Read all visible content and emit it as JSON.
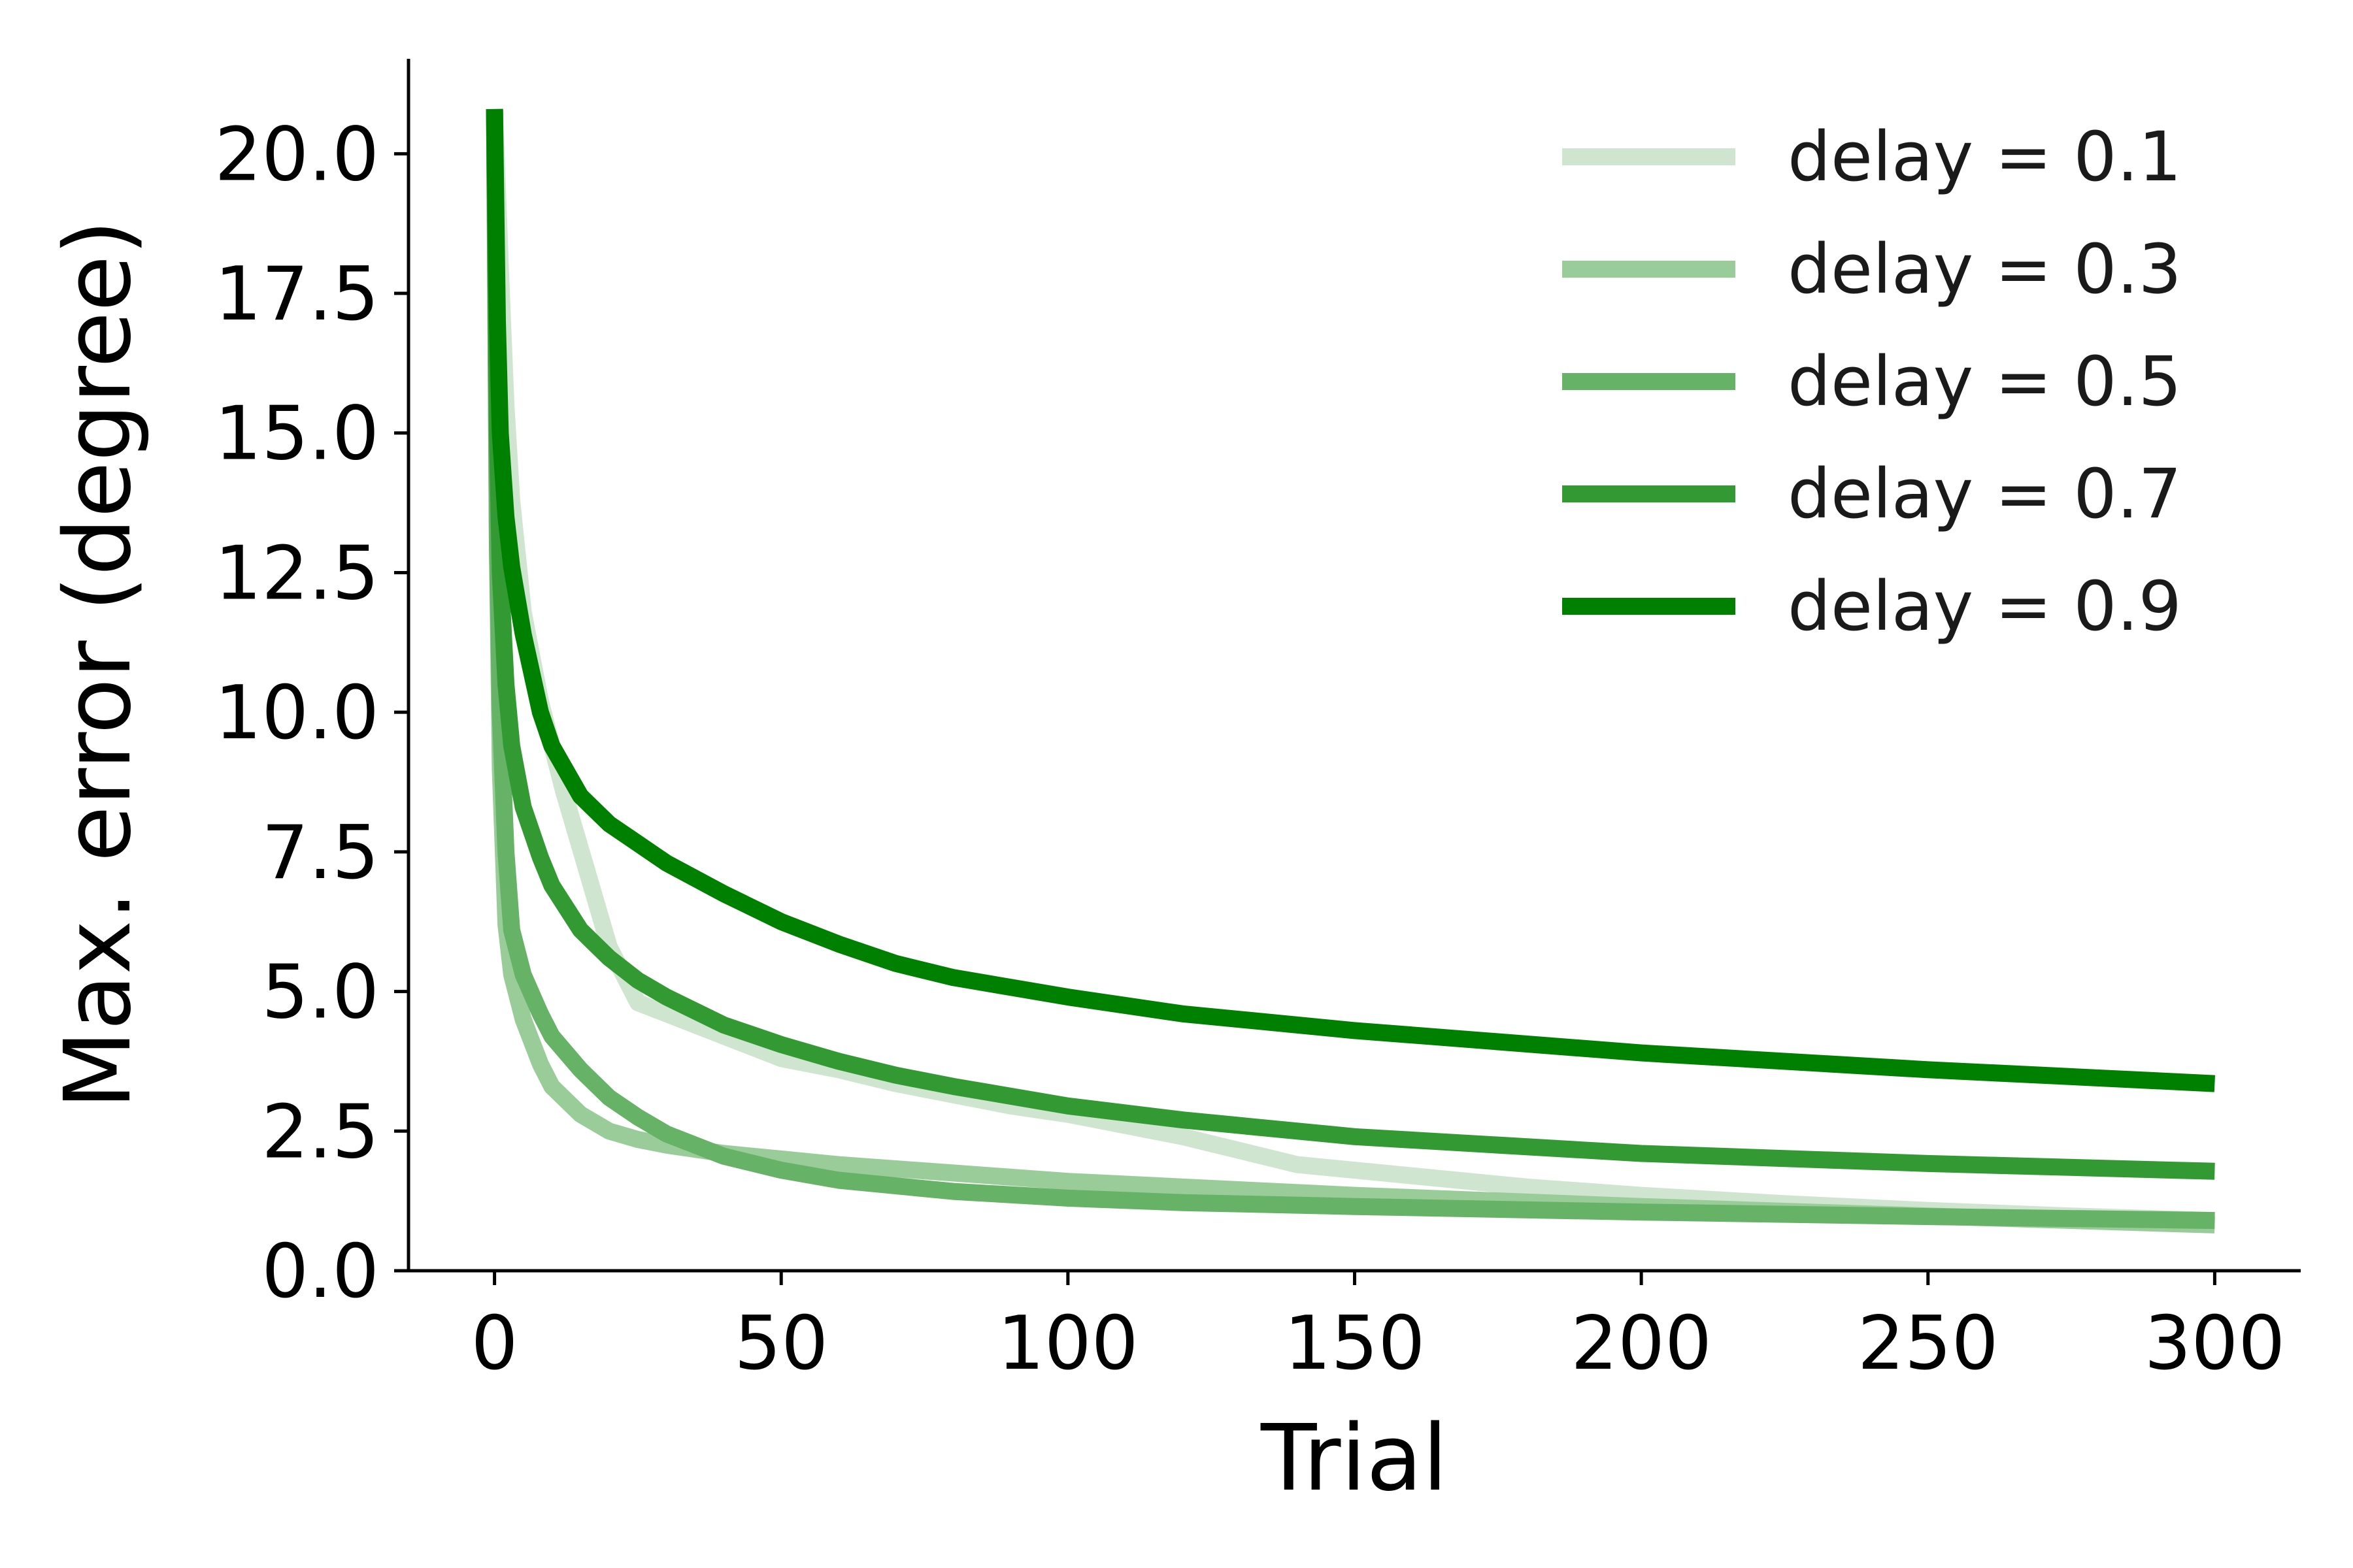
{
  "chart_data": {
    "type": "line",
    "title": "",
    "xlabel": "Trial",
    "ylabel": "Max. error (degree)",
    "xlim": [
      -15,
      315
    ],
    "ylim": [
      0,
      21.7
    ],
    "xticks": [
      0,
      50,
      100,
      150,
      200,
      250,
      300
    ],
    "yticks": [
      0.0,
      2.5,
      5.0,
      7.5,
      10.0,
      12.5,
      15.0,
      17.5,
      20.0
    ],
    "xtick_labels": [
      "0",
      "50",
      "100",
      "150",
      "200",
      "250",
      "300"
    ],
    "ytick_labels": [
      "0.0",
      "2.5",
      "5.0",
      "7.5",
      "10.0",
      "12.5",
      "15.0",
      "17.5",
      "20.0"
    ],
    "grid": false,
    "legend_position": "top-right",
    "series": [
      {
        "name": "delay = 0.1",
        "color": "#cfe5cf",
        "x": [
          0,
          1,
          2,
          3,
          5,
          8,
          12,
          16,
          20,
          25,
          30,
          40,
          50,
          60,
          70,
          80,
          90,
          100,
          120,
          140,
          160,
          180,
          200,
          225,
          250,
          275,
          300
        ],
        "y": [
          20.8,
          18.0,
          15.5,
          13.8,
          11.8,
          10.2,
          8.6,
          7.2,
          5.8,
          4.8,
          4.6,
          4.2,
          3.8,
          3.6,
          3.35,
          3.15,
          2.95,
          2.8,
          2.4,
          1.9,
          1.7,
          1.5,
          1.35,
          1.2,
          1.08,
          0.98,
          0.9
        ]
      },
      {
        "name": "delay = 0.3",
        "color": "#99cc99",
        "x": [
          0,
          0.5,
          1,
          2,
          3,
          5,
          8,
          10,
          15,
          20,
          25,
          30,
          40,
          50,
          60,
          80,
          100,
          120,
          150,
          200,
          250,
          300
        ],
        "y": [
          20.8,
          13.0,
          9.0,
          6.2,
          5.3,
          4.5,
          3.7,
          3.3,
          2.8,
          2.5,
          2.35,
          2.25,
          2.1,
          2.0,
          1.9,
          1.75,
          1.6,
          1.5,
          1.35,
          1.15,
          0.98,
          0.82
        ]
      },
      {
        "name": "delay = 0.5",
        "color": "#66b266",
        "x": [
          0,
          0.5,
          1,
          2,
          3,
          5,
          8,
          10,
          15,
          20,
          25,
          30,
          40,
          50,
          60,
          70,
          80,
          100,
          120,
          150,
          200,
          250,
          300
        ],
        "y": [
          20.8,
          13.0,
          10.0,
          7.5,
          6.1,
          5.3,
          4.6,
          4.2,
          3.6,
          3.1,
          2.75,
          2.45,
          2.05,
          1.8,
          1.62,
          1.52,
          1.42,
          1.3,
          1.22,
          1.15,
          1.05,
          0.97,
          0.9
        ]
      },
      {
        "name": "delay = 0.7",
        "color": "#339933",
        "x": [
          0,
          0.5,
          1,
          2,
          3,
          5,
          8,
          10,
          15,
          20,
          25,
          30,
          40,
          50,
          60,
          70,
          80,
          100,
          120,
          150,
          200,
          250,
          300
        ],
        "y": [
          20.8,
          15.0,
          12.5,
          10.5,
          9.4,
          8.3,
          7.4,
          6.9,
          6.1,
          5.6,
          5.2,
          4.9,
          4.4,
          4.05,
          3.75,
          3.5,
          3.3,
          2.95,
          2.7,
          2.4,
          2.1,
          1.92,
          1.78
        ]
      },
      {
        "name": "delay = 0.9",
        "color": "#008000",
        "x": [
          0,
          0.5,
          1,
          2,
          3,
          5,
          8,
          10,
          15,
          20,
          25,
          30,
          40,
          50,
          60,
          70,
          80,
          100,
          120,
          150,
          200,
          250,
          300
        ],
        "y": [
          20.8,
          17.0,
          15.0,
          13.5,
          12.6,
          11.4,
          10.0,
          9.4,
          8.5,
          8.0,
          7.65,
          7.3,
          6.75,
          6.25,
          5.85,
          5.5,
          5.25,
          4.9,
          4.6,
          4.3,
          3.9,
          3.6,
          3.35
        ]
      }
    ]
  }
}
